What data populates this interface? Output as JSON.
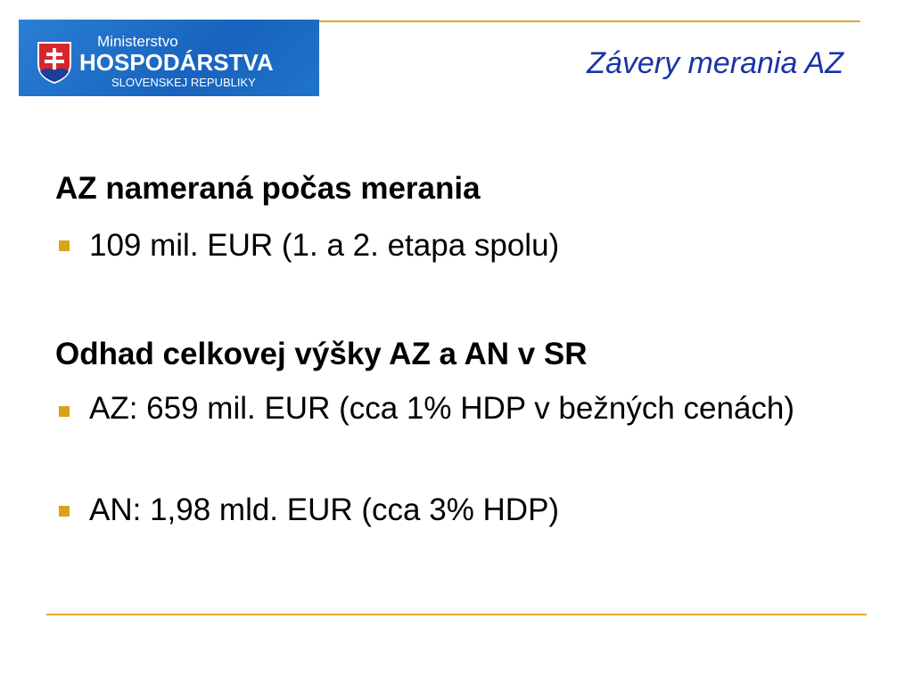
{
  "logo": {
    "line1": "Ministerstvo",
    "line2": "HOSPODÁRSTVA",
    "line3": "SLOVENSKEJ REPUBLIKY"
  },
  "title": "Závery merania AZ",
  "sections": [
    {
      "heading": "AZ nameraná počas merania",
      "bullets": [
        "109 mil. EUR (1. a 2. etapa spolu)"
      ]
    },
    {
      "heading": "Odhad celkovej výšky AZ a AN v SR",
      "bullets": [
        "AZ: 659 mil. EUR (cca 1% HDP v bežných cenách)",
        "AN: 1,98 mld. EUR (cca 3% HDP)"
      ]
    }
  ],
  "colors": {
    "accent": "#e0a92c",
    "title": "#1a33a8",
    "bullet": "#d8a31a"
  }
}
